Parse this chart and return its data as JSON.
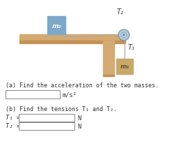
{
  "bg_color": "#ffffff",
  "table_color": "#d4aa72",
  "table_front_color": "#c49055",
  "table_leg_color": "#d4aa72",
  "block_m2_color": "#7da8cc",
  "block_m1_color": "#c8a86a",
  "pulley_color": "#b0c8d8",
  "pulley_edge_color": "#7090a0",
  "rope_color": "#aaaaaa",
  "text_color": "#333333",
  "question_a": "(a) Find the acceleration of the two masses.",
  "unit_a": "m/s²",
  "question_b": "(b) Find the tensions T₁ and T₂.",
  "label_T1": "T₁ =",
  "label_T2": "T₂ =",
  "unit_N": "N",
  "label_m1": "m₁",
  "label_m2": "m₂",
  "label_tension_T1": "T₁",
  "label_tension_T2": "T₂"
}
